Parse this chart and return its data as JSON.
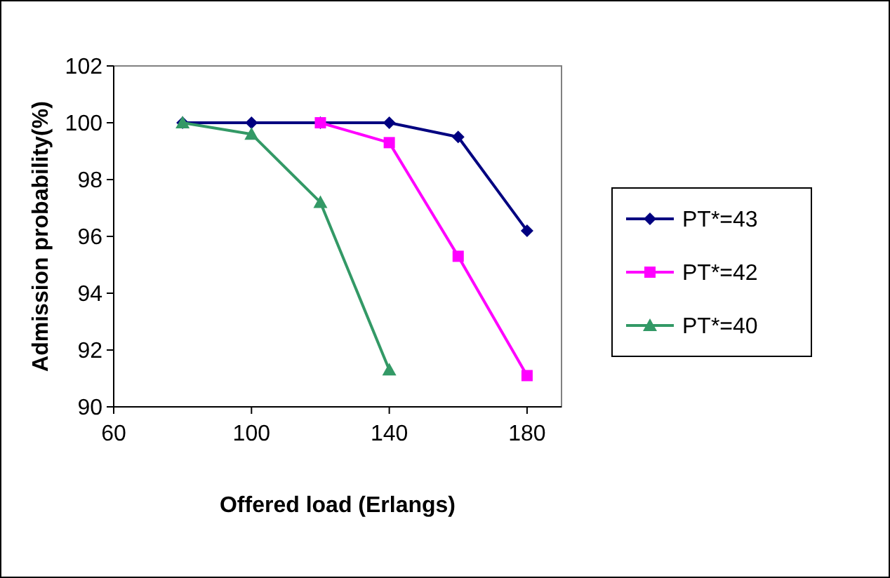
{
  "chart_data": {
    "type": "line",
    "xlabel": "Offered load (Erlangs)",
    "ylabel": "Admission probability(%)",
    "xlim": [
      60,
      190
    ],
    "xticks": [
      60,
      100,
      140,
      180
    ],
    "ylim": [
      90,
      102
    ],
    "yticks": [
      90,
      92,
      94,
      96,
      98,
      100,
      102
    ],
    "grid": false,
    "legend": "right",
    "line_style": "solid",
    "series": [
      {
        "name": "PT*=43",
        "color": "#000080",
        "marker": "diamond",
        "x": [
          80,
          100,
          120,
          140,
          160,
          180
        ],
        "values": [
          100,
          100,
          100,
          100,
          99.5,
          96.2
        ]
      },
      {
        "name": "PT*=42",
        "color": "#ff00ff",
        "marker": "square",
        "x": [
          120,
          140,
          160,
          180
        ],
        "values": [
          100,
          99.3,
          95.3,
          91.1
        ]
      },
      {
        "name": "PT*=40",
        "color": "#339966",
        "marker": "triangle",
        "x": [
          80,
          100,
          120,
          140
        ],
        "values": [
          100,
          99.6,
          97.2,
          91.3
        ]
      }
    ]
  }
}
